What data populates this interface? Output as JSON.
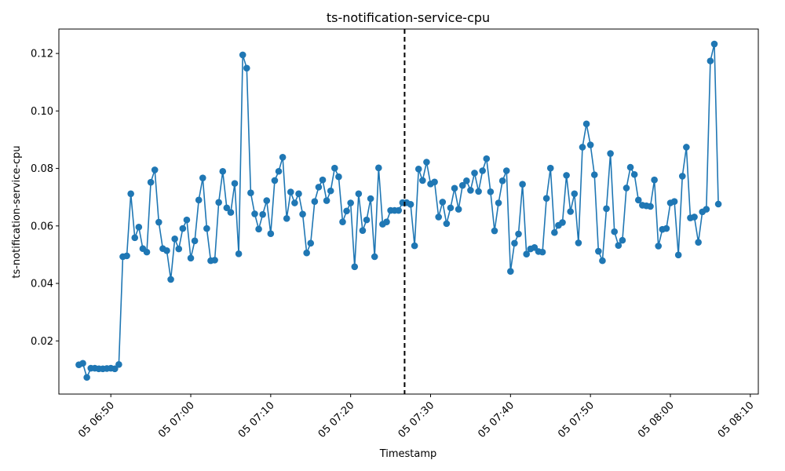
{
  "chart_data": {
    "type": "line",
    "title": "ts-notification-service-cpu",
    "xlabel": "Timestamp",
    "ylabel": "ts-notification-service-cpu",
    "x_start": "2024-01-05T06:46:00",
    "x_step_seconds": 30,
    "xlim": [
      "2024-01-05T06:43:30",
      "2024-01-05T08:11:00"
    ],
    "ylim": [
      0.0015,
      0.1285
    ],
    "x_ticks": [
      {
        "t": "2024-01-05T06:50:00",
        "label": "05 06:50"
      },
      {
        "t": "2024-01-05T07:00:00",
        "label": "05 07:00"
      },
      {
        "t": "2024-01-05T07:10:00",
        "label": "05 07:10"
      },
      {
        "t": "2024-01-05T07:20:00",
        "label": "05 07:20"
      },
      {
        "t": "2024-01-05T07:30:00",
        "label": "05 07:30"
      },
      {
        "t": "2024-01-05T07:40:00",
        "label": "05 07:40"
      },
      {
        "t": "2024-01-05T07:50:00",
        "label": "05 07:50"
      },
      {
        "t": "2024-01-05T08:00:00",
        "label": "05 08:00"
      },
      {
        "t": "2024-01-05T08:10:00",
        "label": "05 08:10"
      }
    ],
    "y_ticks": [
      {
        "v": 0.02,
        "label": "0.02"
      },
      {
        "v": 0.04,
        "label": "0.04"
      },
      {
        "v": 0.06,
        "label": "0.06"
      },
      {
        "v": 0.08,
        "label": "0.08"
      },
      {
        "v": 0.1,
        "label": "0.10"
      },
      {
        "v": 0.12,
        "label": "0.12"
      }
    ],
    "vline": "2024-01-05T07:26:45",
    "grid": false,
    "line_color": "#1f77b4",
    "vline_color": "#000000",
    "values": [
      0.0117,
      0.0122,
      0.0073,
      0.0105,
      0.0105,
      0.0103,
      0.0103,
      0.0104,
      0.0105,
      0.0103,
      0.0118,
      0.0493,
      0.0496,
      0.0712,
      0.0559,
      0.0596,
      0.0521,
      0.0509,
      0.0752,
      0.0795,
      0.0613,
      0.0521,
      0.0514,
      0.0414,
      0.0555,
      0.052,
      0.0591,
      0.0621,
      0.0488,
      0.0548,
      0.069,
      0.0767,
      0.0591,
      0.0479,
      0.0481,
      0.0682,
      0.079,
      0.0663,
      0.0647,
      0.0748,
      0.0503,
      0.1195,
      0.1149,
      0.0715,
      0.0642,
      0.0589,
      0.064,
      0.0688,
      0.0573,
      0.0758,
      0.079,
      0.0839,
      0.0626,
      0.0718,
      0.068,
      0.0712,
      0.0641,
      0.0506,
      0.054,
      0.0685,
      0.0735,
      0.076,
      0.0688,
      0.0722,
      0.0801,
      0.0771,
      0.0614,
      0.0652,
      0.068,
      0.0458,
      0.0712,
      0.0584,
      0.0621,
      0.0695,
      0.0493,
      0.0802,
      0.0606,
      0.0614,
      0.0654,
      0.0654,
      0.0654,
      0.0681,
      0.0681,
      0.0675,
      0.0531,
      0.0798,
      0.0758,
      0.0822,
      0.0746,
      0.0753,
      0.0631,
      0.0683,
      0.0608,
      0.0663,
      0.0731,
      0.0658,
      0.0741,
      0.0757,
      0.0724,
      0.0784,
      0.072,
      0.0792,
      0.0834,
      0.0719,
      0.0583,
      0.068,
      0.0757,
      0.0792,
      0.0442,
      0.054,
      0.0572,
      0.0745,
      0.0502,
      0.052,
      0.0525,
      0.0511,
      0.0509,
      0.0696,
      0.0801,
      0.0577,
      0.0602,
      0.0612,
      0.0776,
      0.065,
      0.0712,
      0.0541,
      0.0874,
      0.0955,
      0.0882,
      0.0778,
      0.0512,
      0.0479,
      0.066,
      0.0852,
      0.058,
      0.0532,
      0.055,
      0.0732,
      0.0804,
      0.0779,
      0.069,
      0.0672,
      0.067,
      0.0668,
      0.076,
      0.053,
      0.0588,
      0.0591,
      0.068,
      0.0685,
      0.0499,
      0.0773,
      0.0874,
      0.0628,
      0.0631,
      0.0543,
      0.0649,
      0.0658,
      0.1174,
      0.1233,
      0.0676
    ]
  }
}
